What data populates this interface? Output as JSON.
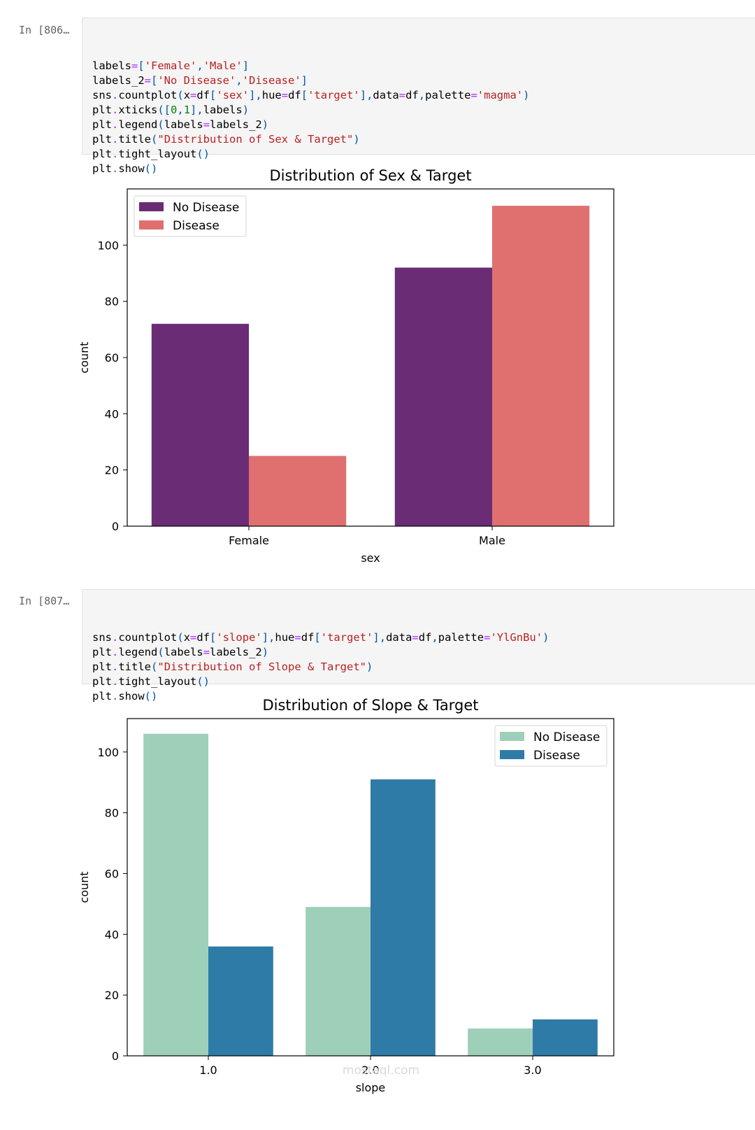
{
  "cells": [
    {
      "prompt": "In [806…",
      "code_lines": [
        [
          {
            "t": "labels"
          },
          {
            "t": "=",
            "c": "op"
          },
          {
            "t": "[",
            "c": "p"
          },
          {
            "t": "'Female'",
            "c": "str"
          },
          {
            "t": ",",
            "c": "p"
          },
          {
            "t": "'Male'",
            "c": "str"
          },
          {
            "t": "]",
            "c": "p"
          }
        ],
        [
          {
            "t": "labels_2"
          },
          {
            "t": "=",
            "c": "op"
          },
          {
            "t": "[",
            "c": "p"
          },
          {
            "t": "'No Disease'",
            "c": "str"
          },
          {
            "t": ",",
            "c": "p"
          },
          {
            "t": "'Disease'",
            "c": "str"
          },
          {
            "t": "]",
            "c": "p"
          }
        ],
        [
          {
            "t": "sns"
          },
          {
            "t": ".",
            "c": "op"
          },
          {
            "t": "countplot"
          },
          {
            "t": "(",
            "c": "p"
          },
          {
            "t": "x"
          },
          {
            "t": "=",
            "c": "op"
          },
          {
            "t": "df"
          },
          {
            "t": "[",
            "c": "p"
          },
          {
            "t": "'sex'",
            "c": "str"
          },
          {
            "t": "],",
            "c": "p"
          },
          {
            "t": "hue"
          },
          {
            "t": "=",
            "c": "op"
          },
          {
            "t": "df"
          },
          {
            "t": "[",
            "c": "p"
          },
          {
            "t": "'target'",
            "c": "str"
          },
          {
            "t": "],",
            "c": "p"
          },
          {
            "t": "data"
          },
          {
            "t": "=",
            "c": "op"
          },
          {
            "t": "df"
          },
          {
            "t": ",",
            "c": "p"
          },
          {
            "t": "palette"
          },
          {
            "t": "=",
            "c": "op"
          },
          {
            "t": "'magma'",
            "c": "str"
          },
          {
            "t": ")",
            "c": "p"
          }
        ],
        [
          {
            "t": "plt"
          },
          {
            "t": ".",
            "c": "op"
          },
          {
            "t": "xticks"
          },
          {
            "t": "([",
            "c": "p"
          },
          {
            "t": "0",
            "c": "n"
          },
          {
            "t": ",",
            "c": "p"
          },
          {
            "t": "1",
            "c": "n"
          },
          {
            "t": "],",
            "c": "p"
          },
          {
            "t": "labels"
          },
          {
            "t": ")",
            "c": "p"
          }
        ],
        [
          {
            "t": "plt"
          },
          {
            "t": ".",
            "c": "op"
          },
          {
            "t": "legend"
          },
          {
            "t": "(",
            "c": "p"
          },
          {
            "t": "labels"
          },
          {
            "t": "=",
            "c": "op"
          },
          {
            "t": "labels_2"
          },
          {
            "t": ")",
            "c": "p"
          }
        ],
        [
          {
            "t": "plt"
          },
          {
            "t": ".",
            "c": "op"
          },
          {
            "t": "title"
          },
          {
            "t": "(",
            "c": "p"
          },
          {
            "t": "\"Distribution of Sex & Target\"",
            "c": "str"
          },
          {
            "t": ")",
            "c": "p"
          }
        ],
        [
          {
            "t": "plt"
          },
          {
            "t": ".",
            "c": "op"
          },
          {
            "t": "tight_layout"
          },
          {
            "t": "()",
            "c": "p"
          }
        ],
        [
          {
            "t": "plt"
          },
          {
            "t": ".",
            "c": "op"
          },
          {
            "t": "show"
          },
          {
            "t": "()",
            "c": "p"
          }
        ]
      ]
    },
    {
      "prompt": "In [807…",
      "code_lines": [
        [
          {
            "t": "sns"
          },
          {
            "t": ".",
            "c": "op"
          },
          {
            "t": "countplot"
          },
          {
            "t": "(",
            "c": "p"
          },
          {
            "t": "x"
          },
          {
            "t": "=",
            "c": "op"
          },
          {
            "t": "df"
          },
          {
            "t": "[",
            "c": "p"
          },
          {
            "t": "'slope'",
            "c": "str"
          },
          {
            "t": "],",
            "c": "p"
          },
          {
            "t": "hue"
          },
          {
            "t": "=",
            "c": "op"
          },
          {
            "t": "df"
          },
          {
            "t": "[",
            "c": "p"
          },
          {
            "t": "'target'",
            "c": "str"
          },
          {
            "t": "],",
            "c": "p"
          },
          {
            "t": "data"
          },
          {
            "t": "=",
            "c": "op"
          },
          {
            "t": "df"
          },
          {
            "t": ",",
            "c": "p"
          },
          {
            "t": "palette"
          },
          {
            "t": "=",
            "c": "op"
          },
          {
            "t": "'YlGnBu'",
            "c": "str"
          },
          {
            "t": ")",
            "c": "p"
          }
        ],
        [
          {
            "t": "plt"
          },
          {
            "t": ".",
            "c": "op"
          },
          {
            "t": "legend"
          },
          {
            "t": "(",
            "c": "p"
          },
          {
            "t": "labels"
          },
          {
            "t": "=",
            "c": "op"
          },
          {
            "t": "labels_2"
          },
          {
            "t": ")",
            "c": "p"
          }
        ],
        [
          {
            "t": "plt"
          },
          {
            "t": ".",
            "c": "op"
          },
          {
            "t": "title"
          },
          {
            "t": "(",
            "c": "p"
          },
          {
            "t": "\"Distribution of Slope & Target\"",
            "c": "str"
          },
          {
            "t": ")",
            "c": "p"
          }
        ],
        [
          {
            "t": "plt"
          },
          {
            "t": ".",
            "c": "op"
          },
          {
            "t": "tight_layout"
          },
          {
            "t": "()",
            "c": "p"
          }
        ],
        [
          {
            "t": "plt"
          },
          {
            "t": ".",
            "c": "op"
          },
          {
            "t": "show"
          },
          {
            "t": "()",
            "c": "p"
          }
        ]
      ]
    }
  ],
  "chart_data": [
    {
      "type": "bar",
      "title": "Distribution of Sex & Target",
      "xlabel": "sex",
      "ylabel": "count",
      "categories": [
        "Female",
        "Male"
      ],
      "series": [
        {
          "name": "No Disease",
          "values": [
            72,
            92
          ],
          "color": "#6a2c75"
        },
        {
          "name": "Disease",
          "values": [
            25,
            114
          ],
          "color": "#e07070"
        }
      ],
      "ylim": [
        0,
        120
      ],
      "yticks": [
        0,
        20,
        40,
        60,
        80,
        100
      ],
      "legend_position": "top-left",
      "grid": false
    },
    {
      "type": "bar",
      "title": "Distribution of Slope & Target",
      "xlabel": "slope",
      "ylabel": "count",
      "categories": [
        "1.0",
        "2.0",
        "3.0"
      ],
      "series": [
        {
          "name": "No Disease",
          "values": [
            106,
            49,
            9
          ],
          "color": "#9ecfb8"
        },
        {
          "name": "Disease",
          "values": [
            36,
            91,
            12
          ],
          "color": "#2f7ba7"
        }
      ],
      "ylim": [
        0,
        111
      ],
      "yticks": [
        0,
        20,
        40,
        60,
        80,
        100
      ],
      "legend_position": "top-right",
      "grid": false
    }
  ],
  "watermark": {
    "text": "mostaql.com"
  }
}
